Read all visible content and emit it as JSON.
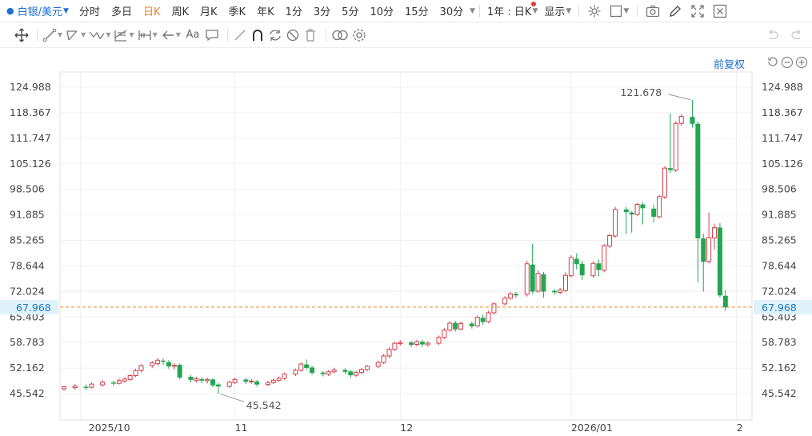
{
  "toolbar": {
    "symbol": "白银/美元",
    "periods": [
      {
        "label": "分时",
        "active": false
      },
      {
        "label": "多日",
        "active": false
      },
      {
        "label": "日K",
        "active": true
      },
      {
        "label": "周K",
        "active": false
      },
      {
        "label": "月K",
        "active": false
      },
      {
        "label": "季K",
        "active": false
      },
      {
        "label": "年K",
        "active": false
      },
      {
        "label": "1分",
        "active": false
      },
      {
        "label": "3分",
        "active": false
      },
      {
        "label": "5分",
        "active": false
      },
      {
        "label": "10分",
        "active": false
      },
      {
        "label": "15分",
        "active": false
      },
      {
        "label": "30分",
        "active": false
      }
    ],
    "range": "1年 : 日K",
    "display": "显示"
  },
  "chart": {
    "adjust_label": "前复权",
    "y_ticks": [
      "124.988",
      "118.367",
      "111.747",
      "105.126",
      "98.506",
      "91.885",
      "85.265",
      "78.644",
      "72.024",
      "65.403",
      "58.783",
      "52.162",
      "45.542"
    ],
    "x_labels": [
      {
        "label": "2025/10",
        "day": 3
      },
      {
        "label": "11",
        "day": 31
      },
      {
        "label": "12",
        "day": 61
      },
      {
        "label": "2026/01",
        "day": 92
      },
      {
        "label": "2",
        "day": 122
      }
    ],
    "current_price": "67.968",
    "max_label": "121.678",
    "min_label": "45.542"
  },
  "chart_data": {
    "type": "candlestick",
    "y_range": [
      45.542,
      124.988
    ],
    "y_ticks": [
      124.988,
      118.367,
      111.747,
      105.126,
      98.506,
      91.885,
      85.265,
      78.644,
      72.024,
      65.403,
      58.783,
      52.162,
      45.542
    ],
    "current_price": 67.968,
    "max": 121.678,
    "min": 45.542,
    "candles": [
      [
        0,
        46.8,
        47.3,
        46.3,
        47.6
      ],
      [
        2,
        47.1,
        47.5,
        46.6,
        48.0
      ],
      [
        4,
        47.3,
        47.0,
        46.5,
        47.9
      ],
      [
        5,
        47.2,
        48.0,
        46.9,
        48.4
      ],
      [
        7,
        47.8,
        48.5,
        47.4,
        49.0
      ],
      [
        9,
        48.4,
        48.1,
        47.6,
        48.9
      ],
      [
        10,
        48.2,
        48.9,
        47.9,
        49.4
      ],
      [
        11,
        48.8,
        49.3,
        48.4,
        49.8
      ],
      [
        12,
        49.2,
        50.2,
        48.9,
        50.6
      ],
      [
        13,
        50.2,
        51.5,
        49.8,
        52.0
      ],
      [
        14,
        51.5,
        52.8,
        51.0,
        53.2
      ],
      [
        16,
        52.8,
        53.5,
        52.2,
        54.0
      ],
      [
        17,
        53.3,
        54.2,
        52.8,
        54.8
      ],
      [
        18,
        54.1,
        53.8,
        53.0,
        54.6
      ],
      [
        19,
        53.7,
        52.6,
        52.0,
        54.2
      ],
      [
        20,
        52.6,
        52.9,
        51.8,
        53.4
      ],
      [
        21,
        53.0,
        49.7,
        49.2,
        53.3
      ],
      [
        23,
        49.9,
        49.1,
        48.5,
        50.3
      ],
      [
        24,
        49.0,
        49.4,
        48.4,
        49.9
      ],
      [
        25,
        49.3,
        48.9,
        48.3,
        49.8
      ],
      [
        26,
        48.9,
        49.2,
        48.2,
        49.7
      ],
      [
        27,
        49.2,
        47.7,
        47.2,
        49.6
      ],
      [
        28,
        47.9,
        47.4,
        45.5,
        48.3
      ],
      [
        30,
        47.4,
        48.5,
        47.0,
        48.9
      ],
      [
        31,
        48.4,
        49.2,
        48.0,
        49.7
      ],
      [
        33,
        49.2,
        48.6,
        48.0,
        49.6
      ],
      [
        34,
        48.7,
        48.8,
        48.1,
        49.3
      ],
      [
        35,
        48.7,
        47.9,
        47.3,
        49.1
      ],
      [
        37,
        47.9,
        48.4,
        47.4,
        48.9
      ],
      [
        38,
        48.4,
        49.0,
        48.0,
        49.5
      ],
      [
        39,
        49.0,
        49.5,
        48.6,
        50.0
      ],
      [
        40,
        49.5,
        50.6,
        49.1,
        51.0
      ],
      [
        42,
        50.6,
        51.6,
        50.1,
        52.0
      ],
      [
        43,
        51.6,
        53.2,
        51.2,
        53.6
      ],
      [
        44,
        53.1,
        52.2,
        51.7,
        54.4
      ],
      [
        45,
        52.3,
        50.9,
        50.4,
        52.8
      ],
      [
        47,
        51.0,
        50.6,
        50.0,
        51.4
      ],
      [
        48,
        50.6,
        51.2,
        50.1,
        51.6
      ],
      [
        49,
        51.2,
        51.7,
        50.8,
        52.2
      ],
      [
        51,
        51.7,
        51.2,
        50.6,
        52.1
      ],
      [
        52,
        51.3,
        50.3,
        49.6,
        51.7
      ],
      [
        53,
        50.3,
        51.0,
        49.9,
        51.5
      ],
      [
        54,
        51.0,
        51.8,
        50.6,
        52.2
      ],
      [
        55,
        51.8,
        52.6,
        51.3,
        53.0
      ],
      [
        57,
        52.6,
        53.6,
        52.2,
        54.1
      ],
      [
        58,
        53.6,
        55.3,
        53.2,
        55.8
      ],
      [
        59,
        55.3,
        57.0,
        54.8,
        57.5
      ],
      [
        60,
        57.0,
        58.6,
        56.6,
        59.0
      ],
      [
        61,
        58.5,
        58.8,
        58.0,
        59.4
      ],
      [
        63,
        58.8,
        58.2,
        57.6,
        59.2
      ],
      [
        64,
        58.3,
        59.0,
        57.8,
        59.5
      ],
      [
        65,
        59.0,
        58.3,
        57.6,
        59.5
      ],
      [
        66,
        58.2,
        58.6,
        57.7,
        59.1
      ],
      [
        68,
        58.6,
        60.1,
        58.2,
        60.6
      ],
      [
        69,
        60.1,
        62.0,
        59.7,
        62.5
      ],
      [
        70,
        62.0,
        63.8,
        61.6,
        64.3
      ],
      [
        71,
        63.9,
        62.2,
        61.6,
        64.4
      ],
      [
        72,
        62.3,
        63.7,
        61.9,
        64.2
      ],
      [
        74,
        63.7,
        63.0,
        62.4,
        64.2
      ],
      [
        75,
        63.1,
        65.3,
        62.7,
        65.8
      ],
      [
        76,
        65.2,
        64.1,
        63.4,
        66.0
      ],
      [
        77,
        64.2,
        66.5,
        63.8,
        67.0
      ],
      [
        78,
        66.5,
        68.8,
        66.0,
        69.3
      ],
      [
        80,
        68.8,
        70.3,
        68.4,
        70.8
      ],
      [
        81,
        70.3,
        71.4,
        69.9,
        71.9
      ],
      [
        82,
        71.4,
        71.0,
        70.4,
        71.9
      ],
      [
        84,
        71.3,
        79.2,
        70.7,
        80.0
      ],
      [
        85,
        79.0,
        72.0,
        71.4,
        84.4
      ],
      [
        86,
        72.1,
        76.7,
        71.7,
        77.5
      ],
      [
        87,
        76.5,
        72.0,
        70.4,
        77.1
      ],
      [
        89,
        72.2,
        71.8,
        71.2,
        72.6
      ],
      [
        90,
        71.8,
        72.4,
        71.3,
        73.0
      ],
      [
        91,
        72.3,
        76.2,
        71.9,
        77.0
      ],
      [
        92,
        76.1,
        80.8,
        75.7,
        81.4
      ],
      [
        93,
        80.5,
        79.1,
        77.7,
        81.9
      ],
      [
        94,
        79.2,
        76.2,
        75.0,
        80.0
      ],
      [
        96,
        76.1,
        79.3,
        75.6,
        79.8
      ],
      [
        97,
        79.3,
        77.6,
        75.9,
        80.3
      ],
      [
        98,
        77.5,
        83.9,
        77.0,
        84.4
      ],
      [
        99,
        83.8,
        86.5,
        83.3,
        87.0
      ],
      [
        100,
        86.4,
        93.3,
        86.0,
        94.0
      ],
      [
        102,
        93.3,
        92.6,
        86.9,
        93.9
      ],
      [
        103,
        92.5,
        92.0,
        87.3,
        92.8
      ],
      [
        104,
        92.0,
        94.6,
        91.5,
        95.0
      ],
      [
        105,
        94.6,
        93.6,
        89.4,
        95.2
      ],
      [
        107,
        93.5,
        91.4,
        89.9,
        94.5
      ],
      [
        108,
        91.4,
        96.6,
        91.0,
        97.1
      ],
      [
        109,
        96.5,
        104.0,
        96.0,
        104.5
      ],
      [
        110,
        104.0,
        103.5,
        102.8,
        118.2
      ],
      [
        111,
        103.5,
        115.6,
        103.0,
        116.2
      ],
      [
        112,
        115.6,
        117.4,
        115.0,
        118.0
      ],
      [
        114,
        117.3,
        115.5,
        114.5,
        121.7
      ],
      [
        115,
        115.5,
        85.8,
        74.4,
        116.1
      ],
      [
        116,
        85.8,
        79.7,
        72.0,
        87.0
      ],
      [
        117,
        79.8,
        86.0,
        79.3,
        92.5
      ],
      [
        118,
        85.9,
        88.6,
        82.9,
        89.6
      ],
      [
        119,
        88.6,
        71.0,
        70.5,
        89.8
      ],
      [
        120,
        70.9,
        67.9,
        67.0,
        72.4
      ]
    ]
  }
}
